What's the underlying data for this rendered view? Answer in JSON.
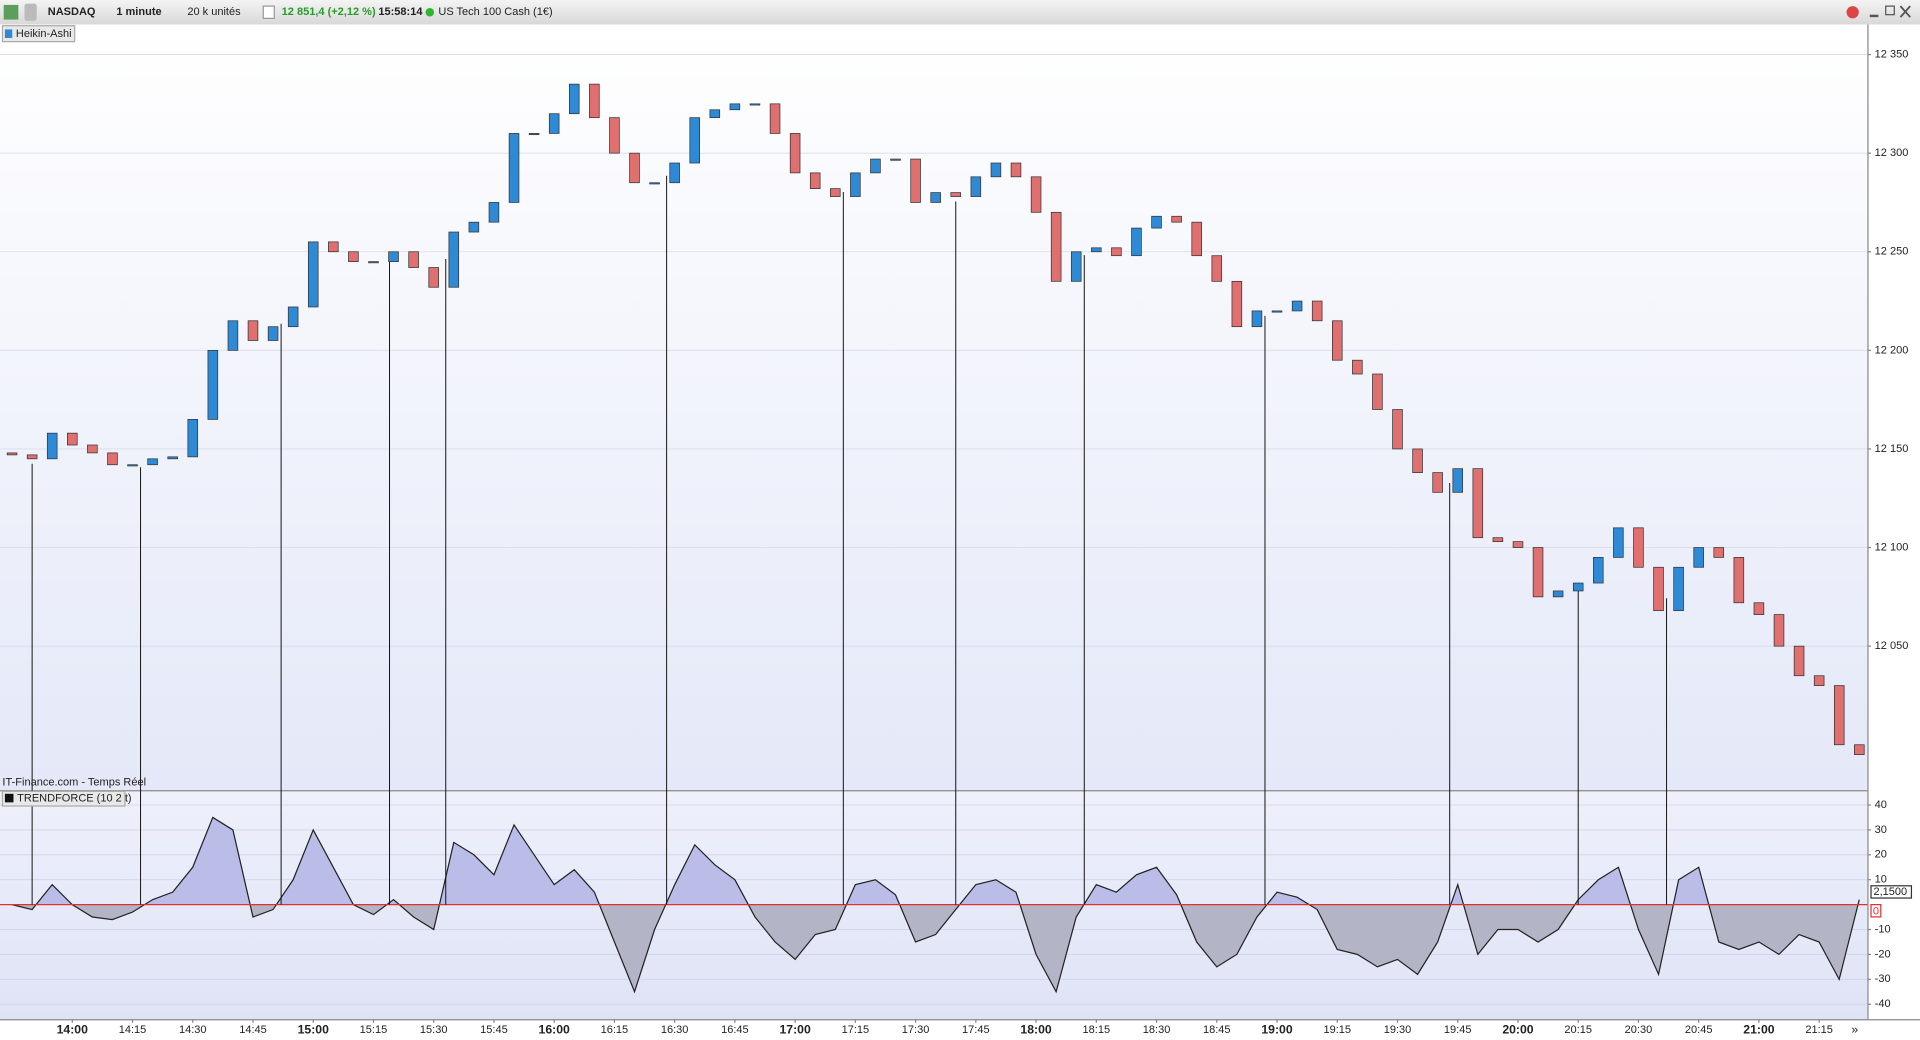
{
  "toolbar": {
    "instrument": "NASDAQ",
    "interval": "1 minute",
    "units": "20 k unités",
    "quote": "12 851,4 (+2,12 %)",
    "time": "15:58:14",
    "name": "US Tech 100 Cash (1€)"
  },
  "chart_data": [
    {
      "type": "candlestick",
      "legend": "Heikin-Ashi",
      "source": "IT-Finance.com - Temps Réel",
      "x": [
        "13:45",
        "13:50",
        "13:55",
        "14:00",
        "14:05",
        "14:10",
        "14:15",
        "14:20",
        "14:25",
        "14:30",
        "14:35",
        "14:40",
        "14:45",
        "14:50",
        "14:55",
        "15:00",
        "15:05",
        "15:10",
        "15:15",
        "15:20",
        "15:25",
        "15:30",
        "15:35",
        "15:40",
        "15:45",
        "15:50",
        "15:55",
        "16:00",
        "16:05",
        "16:10",
        "16:15",
        "16:20",
        "16:25",
        "16:30",
        "16:35",
        "16:40",
        "16:45",
        "16:50",
        "16:55",
        "17:00",
        "17:05",
        "17:10",
        "17:15",
        "17:20",
        "17:25",
        "17:30",
        "17:35",
        "17:40",
        "17:45",
        "17:50",
        "17:55",
        "18:00",
        "18:05",
        "18:10",
        "18:15",
        "18:20",
        "18:25",
        "18:30",
        "18:35",
        "18:40",
        "18:45",
        "18:50",
        "18:55",
        "19:00",
        "19:05",
        "19:10",
        "19:15",
        "19:20",
        "19:25",
        "19:30",
        "19:35",
        "19:40",
        "19:45",
        "19:50",
        "19:55",
        "20:00",
        "20:05",
        "20:10",
        "20:15",
        "20:20",
        "20:25",
        "20:30",
        "20:35",
        "20:40",
        "20:45",
        "20:50",
        "20:55",
        "21:00",
        "21:05",
        "21:10",
        "21:15",
        "21:20",
        "21:25"
      ],
      "open": [
        12148,
        12147,
        12145,
        12158,
        12152,
        12148,
        12142,
        12142,
        12145,
        12146,
        12165,
        12200,
        12215,
        12205,
        12212,
        12222,
        12255,
        12250,
        12245,
        12245,
        12250,
        12242,
        12232,
        12260,
        12265,
        12275,
        12310,
        12310,
        12320,
        12335,
        12318,
        12300,
        12285,
        12285,
        12295,
        12318,
        12322,
        12325,
        12325,
        12310,
        12290,
        12282,
        12278,
        12290,
        12297,
        12297,
        12275,
        12280,
        12278,
        12288,
        12295,
        12288,
        12270,
        12235,
        12250,
        12252,
        12248,
        12262,
        12268,
        12265,
        12248,
        12235,
        12212,
        12220,
        12220,
        12225,
        12215,
        12195,
        12188,
        12170,
        12150,
        12138,
        12128,
        12140,
        12105,
        12103,
        12100,
        12075,
        12078,
        12082,
        12095,
        12110,
        12090,
        12068,
        12090,
        12100,
        12095,
        12072,
        12066,
        12050,
        12035,
        12030,
        12000
      ],
      "close": [
        12147,
        12145,
        12158,
        12152,
        12148,
        12142,
        12142,
        12145,
        12146,
        12165,
        12200,
        12215,
        12205,
        12212,
        12222,
        12255,
        12250,
        12245,
        12245,
        12250,
        12242,
        12232,
        12260,
        12265,
        12275,
        12310,
        12310,
        12320,
        12335,
        12318,
        12300,
        12285,
        12285,
        12295,
        12318,
        12322,
        12325,
        12325,
        12310,
        12290,
        12282,
        12278,
        12290,
        12297,
        12297,
        12275,
        12280,
        12278,
        12288,
        12295,
        12288,
        12270,
        12235,
        12250,
        12252,
        12248,
        12262,
        12268,
        12265,
        12248,
        12235,
        12212,
        12220,
        12220,
        12225,
        12215,
        12195,
        12188,
        12170,
        12150,
        12138,
        12128,
        12140,
        12105,
        12103,
        12100,
        12075,
        12078,
        12082,
        12095,
        12110,
        12090,
        12068,
        12090,
        12100,
        12095,
        12072,
        12066,
        12050,
        12035,
        12030,
        12000,
        11995
      ],
      "up_color": "#2f8ad6",
      "down_color": "#e07070",
      "xlim": [
        "13:42",
        "21:27"
      ],
      "ylim": [
        11977,
        12364
      ],
      "yticks": [
        {
          "value": 12350,
          "label": "12 350"
        },
        {
          "value": 12300,
          "label": "12 300"
        },
        {
          "value": 12250,
          "label": "12 250"
        },
        {
          "value": 12200,
          "label": "12 200"
        },
        {
          "value": 12150,
          "label": "12 150"
        },
        {
          "value": 12100,
          "label": "12 100"
        },
        {
          "value": 12050,
          "label": "12 050"
        }
      ],
      "grid": true,
      "markers": [
        "13:50",
        "14:17",
        "14:52",
        "15:19",
        "15:33",
        "16:28",
        "17:12",
        "17:40",
        "18:12",
        "18:57",
        "19:43",
        "20:15",
        "20:37"
      ]
    },
    {
      "type": "area",
      "legend": "TRENDFORCE (10 2 t)",
      "x": [
        "13:45",
        "13:50",
        "13:55",
        "14:00",
        "14:05",
        "14:10",
        "14:15",
        "14:20",
        "14:25",
        "14:30",
        "14:35",
        "14:40",
        "14:45",
        "14:50",
        "14:55",
        "15:00",
        "15:05",
        "15:10",
        "15:15",
        "15:20",
        "15:25",
        "15:30",
        "15:35",
        "15:40",
        "15:45",
        "15:50",
        "15:55",
        "16:00",
        "16:05",
        "16:10",
        "16:15",
        "16:20",
        "16:25",
        "16:30",
        "16:35",
        "16:40",
        "16:45",
        "16:50",
        "16:55",
        "17:00",
        "17:05",
        "17:10",
        "17:15",
        "17:20",
        "17:25",
        "17:30",
        "17:35",
        "17:40",
        "17:45",
        "17:50",
        "17:55",
        "18:00",
        "18:05",
        "18:10",
        "18:15",
        "18:20",
        "18:25",
        "18:30",
        "18:35",
        "18:40",
        "18:45",
        "18:50",
        "18:55",
        "19:00",
        "19:05",
        "19:10",
        "19:15",
        "19:20",
        "19:25",
        "19:30",
        "19:35",
        "19:40",
        "19:45",
        "19:50",
        "19:55",
        "20:00",
        "20:05",
        "20:10",
        "20:15",
        "20:20",
        "20:25",
        "20:30",
        "20:35",
        "20:40",
        "20:45",
        "20:50",
        "20:55",
        "21:00",
        "21:05",
        "21:10",
        "21:15",
        "21:20",
        "21:25"
      ],
      "values": [
        0,
        -2,
        8,
        0,
        -5,
        -6,
        -3,
        2,
        5,
        15,
        35,
        30,
        -5,
        -2,
        10,
        30,
        15,
        0,
        -4,
        2,
        -5,
        -10,
        25,
        20,
        12,
        32,
        20,
        8,
        14,
        5,
        -15,
        -35,
        -10,
        8,
        24,
        16,
        10,
        -5,
        -15,
        -22,
        -12,
        -10,
        8,
        10,
        4,
        -15,
        -12,
        -2,
        8,
        10,
        5,
        -20,
        -35,
        -5,
        8,
        5,
        12,
        15,
        4,
        -15,
        -25,
        -20,
        -5,
        5,
        3,
        -2,
        -18,
        -20,
        -25,
        -22,
        -28,
        -15,
        8,
        -20,
        -10,
        -10,
        -15,
        -10,
        2,
        10,
        15,
        -10,
        -28,
        10,
        15,
        -15,
        -18,
        -15,
        -20,
        -12,
        -15,
        -30,
        2
      ],
      "color": "#222222",
      "fill_positive": "#b9bde8",
      "fill_negative": "#b3b5c6",
      "xlim": [
        "13:42",
        "21:27"
      ],
      "ylim": [
        -46,
        45
      ],
      "yticks": [
        40,
        30,
        20,
        10,
        -10,
        -20,
        -30,
        -40
      ],
      "grid": true,
      "zero_line": {
        "value": 0,
        "label": "0",
        "color": "#e03030"
      },
      "last_value": {
        "value": 2.15,
        "label": "2,1500"
      },
      "xticks": [
        "14:00",
        "14:15",
        "14:30",
        "14:45",
        "15:00",
        "15:15",
        "15:30",
        "15:45",
        "16:00",
        "16:15",
        "16:30",
        "16:45",
        "17:00",
        "17:15",
        "17:30",
        "17:45",
        "18:00",
        "18:15",
        "18:30",
        "18:45",
        "19:00",
        "19:15",
        "19:30",
        "19:45",
        "20:00",
        "20:15",
        "20:30",
        "20:45",
        "21:00",
        "21:15"
      ]
    }
  ]
}
